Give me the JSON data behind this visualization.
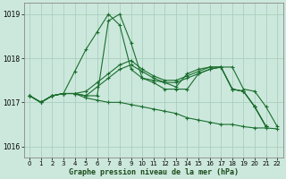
{
  "title": "Graphe pression niveau de la mer (hPa)",
  "background_color": "#cce8dc",
  "grid_color": "#aacfbf",
  "line_color": "#1a6e2e",
  "xlim": [
    -0.5,
    22.5
  ],
  "ylim": [
    1015.75,
    1019.25
  ],
  "xticks": [
    0,
    1,
    2,
    3,
    4,
    5,
    6,
    7,
    8,
    9,
    10,
    11,
    12,
    13,
    14,
    15,
    16,
    17,
    18,
    19,
    20,
    21,
    22
  ],
  "yticks": [
    1016,
    1017,
    1018,
    1019
  ],
  "series": [
    {
      "x": [
        0,
        1,
        2,
        3,
        4,
        5,
        6,
        7,
        8,
        9,
        10,
        11,
        12,
        13,
        14,
        15,
        16,
        17,
        18,
        19,
        20,
        21,
        22
      ],
      "y": [
        1017.15,
        1017.0,
        1017.15,
        1017.2,
        1017.2,
        1017.15,
        1017.15,
        1018.85,
        1019.0,
        1018.35,
        1017.55,
        1017.45,
        1017.3,
        1017.3,
        1017.3,
        1017.65,
        1017.75,
        1017.8,
        1017.8,
        1017.3,
        1017.25,
        1016.9,
        1016.45
      ]
    },
    {
      "x": [
        0,
        1,
        2,
        3,
        4,
        5,
        6,
        7,
        8,
        9,
        10,
        11,
        12,
        13,
        14,
        15,
        16,
        17,
        18,
        19,
        20,
        21
      ],
      "y": [
        1017.15,
        1017.0,
        1017.15,
        1017.2,
        1017.7,
        1018.2,
        1018.6,
        1019.0,
        1018.75,
        1017.75,
        1017.55,
        1017.5,
        1017.45,
        1017.35,
        1017.65,
        1017.75,
        1017.8,
        1017.8,
        1017.3,
        1017.25,
        1016.9,
        1016.45
      ]
    },
    {
      "x": [
        0,
        1,
        2,
        3,
        4,
        5,
        6,
        7,
        8,
        9,
        10,
        11,
        12,
        13,
        14,
        15,
        16,
        17,
        18,
        19,
        20,
        21,
        22
      ],
      "y": [
        1017.15,
        1017.0,
        1017.15,
        1017.2,
        1017.2,
        1017.1,
        1017.05,
        1017.0,
        1017.0,
        1016.95,
        1016.9,
        1016.85,
        1016.8,
        1016.75,
        1016.65,
        1016.6,
        1016.55,
        1016.5,
        1016.5,
        1016.45,
        1016.42,
        1016.42,
        1016.4
      ]
    },
    {
      "x": [
        0,
        1,
        2,
        3,
        4,
        5,
        6,
        7,
        8,
        9,
        10,
        11,
        12,
        13,
        14,
        15,
        16,
        17,
        18,
        19,
        20,
        21
      ],
      "y": [
        1017.15,
        1017.0,
        1017.15,
        1017.2,
        1017.2,
        1017.15,
        1017.35,
        1017.55,
        1017.75,
        1017.85,
        1017.7,
        1017.55,
        1017.45,
        1017.45,
        1017.55,
        1017.65,
        1017.75,
        1017.8,
        1017.3,
        1017.25,
        1016.9,
        1016.45
      ]
    },
    {
      "x": [
        0,
        1,
        2,
        3,
        4,
        5,
        6,
        7,
        8,
        9,
        10,
        11,
        12,
        13,
        14,
        15,
        16,
        17,
        18,
        19,
        20,
        21
      ],
      "y": [
        1017.15,
        1017.0,
        1017.15,
        1017.2,
        1017.2,
        1017.25,
        1017.45,
        1017.65,
        1017.85,
        1017.95,
        1017.75,
        1017.6,
        1017.5,
        1017.5,
        1017.6,
        1017.7,
        1017.8,
        1017.8,
        1017.3,
        1017.25,
        1016.9,
        1016.45
      ]
    }
  ]
}
